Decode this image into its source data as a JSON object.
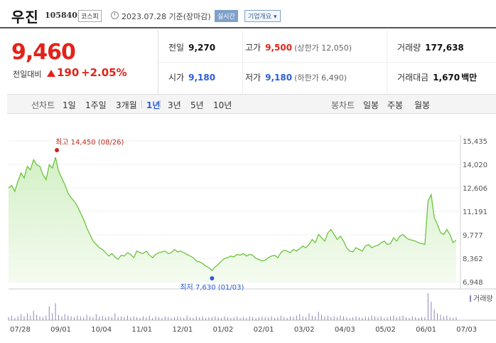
{
  "header": {
    "name": "우진",
    "code": "105840",
    "market": "코스피",
    "date_line": "2023.07.28  기준(장마감)",
    "realtime_label": "실시간",
    "company_info_label": "기업개요 ▾"
  },
  "price": {
    "current": "9,460",
    "change_label": "전일대비",
    "change_value": "190",
    "change_pct": "+2.05%"
  },
  "stats": {
    "prev_close": {
      "label": "전일",
      "value": "9,270"
    },
    "high": {
      "label": "고가",
      "value": "9,500",
      "sub": "(상한가 12,050)"
    },
    "volume": {
      "label": "거래량",
      "value": "177,638"
    },
    "open": {
      "label": "시가",
      "value": "9,180"
    },
    "low": {
      "label": "저가",
      "value": "9,180",
      "sub": "(하한가 6,490)"
    },
    "amount": {
      "label": "거래대금",
      "value": "1,670",
      "unit": "백만"
    }
  },
  "tabs": {
    "line_label": "선차트",
    "periods": [
      "1일",
      "1주일",
      "3개월",
      "1년",
      "3년",
      "5년",
      "10년"
    ],
    "active_period": "1년",
    "candle_label": "봉차트",
    "candles": [
      "일봉",
      "주봉",
      "월봉"
    ]
  },
  "chart_data": {
    "type": "area",
    "y_ticks": [
      "15,435",
      "14,020",
      "12,606",
      "11,191",
      "9,777",
      "8,362",
      "6,948"
    ],
    "ylim": [
      6948,
      15435
    ],
    "x_ticks": [
      "07/28",
      "09/01",
      "10/04",
      "11/01",
      "12/01",
      "01/02",
      "02/01",
      "03/02",
      "04/03",
      "05/02",
      "06/01",
      "07/03"
    ],
    "high_annotation": "최고 14,450 (08/26)",
    "low_annotation": "최저 7,630 (01/03)",
    "volume_label": "거래량",
    "series": [
      {
        "values": [
          12600,
          12750,
          12400,
          13000,
          13500,
          13200,
          13900,
          13700,
          14300,
          14000,
          13900,
          13400,
          13100,
          14000,
          13800,
          14450,
          13600,
          13200,
          12800,
          12300,
          12000,
          11800,
          11500,
          11100,
          10700,
          10200,
          9800,
          9400,
          9200,
          9000,
          8900,
          8700,
          8500,
          8650,
          8450,
          8300,
          8550,
          8500,
          8700,
          8600,
          8400,
          8800,
          8700,
          8650,
          8800,
          8550,
          8400,
          8600,
          8700,
          8750,
          8800,
          8650,
          8700,
          8900,
          8750,
          8800,
          8700,
          8600,
          8500,
          8400,
          8200,
          8150,
          8050,
          7900,
          7800,
          7630,
          7850,
          8000,
          8200,
          8350,
          8400,
          8500,
          8450,
          8600,
          8550,
          8650,
          8500,
          8600,
          8550,
          8350,
          8300,
          8200,
          8250,
          8400,
          8500,
          8550,
          8400,
          8700,
          8850,
          8800,
          8700,
          8900,
          8800,
          8950,
          9100,
          9000,
          9200,
          9500,
          9300,
          9800,
          9600,
          9400,
          9900,
          10100,
          9800,
          9500,
          9700,
          9400,
          9000,
          8800,
          8750,
          9000,
          8900,
          8800,
          9100,
          9200,
          9000,
          9100,
          9150,
          9300,
          9400,
          9200,
          9250,
          9600,
          9400,
          9700,
          9800,
          9600,
          9500,
          9450,
          9400,
          9300,
          9250,
          9200,
          11800,
          12200,
          10800,
          10400,
          9900,
          9800,
          10100,
          9800,
          9300,
          9460
        ]
      },
      {
        "name": "거래량",
        "values": [
          4,
          6,
          3,
          5,
          8,
          5,
          9,
          6,
          12,
          7,
          5,
          4,
          6,
          18,
          9,
          22,
          7,
          5,
          8,
          6,
          5,
          4,
          6,
          5,
          4,
          7,
          5,
          4,
          8,
          5,
          6,
          4,
          5,
          4,
          9,
          4,
          5,
          4,
          6,
          4,
          5,
          4,
          3,
          5,
          4,
          6,
          3,
          5,
          4,
          3,
          5,
          4,
          3,
          4,
          5,
          4,
          3,
          6,
          4,
          3,
          5,
          4,
          5,
          3,
          4,
          4,
          5,
          4,
          3,
          5,
          4,
          3,
          4,
          5,
          3,
          4,
          3,
          5,
          4,
          3,
          4,
          5,
          4,
          4,
          5,
          3,
          4,
          6,
          4,
          3,
          5,
          4,
          6,
          8,
          5,
          4,
          9,
          6,
          5,
          11,
          7,
          5,
          6,
          4,
          5,
          4,
          6,
          5,
          4,
          3,
          4,
          5,
          4,
          3,
          5,
          4,
          6,
          5,
          4,
          5,
          3,
          4,
          5,
          6,
          4,
          5,
          6,
          4,
          3,
          5,
          4,
          3,
          4,
          4,
          35,
          24,
          14,
          9,
          7,
          5,
          6,
          4,
          3,
          4
        ]
      }
    ]
  }
}
